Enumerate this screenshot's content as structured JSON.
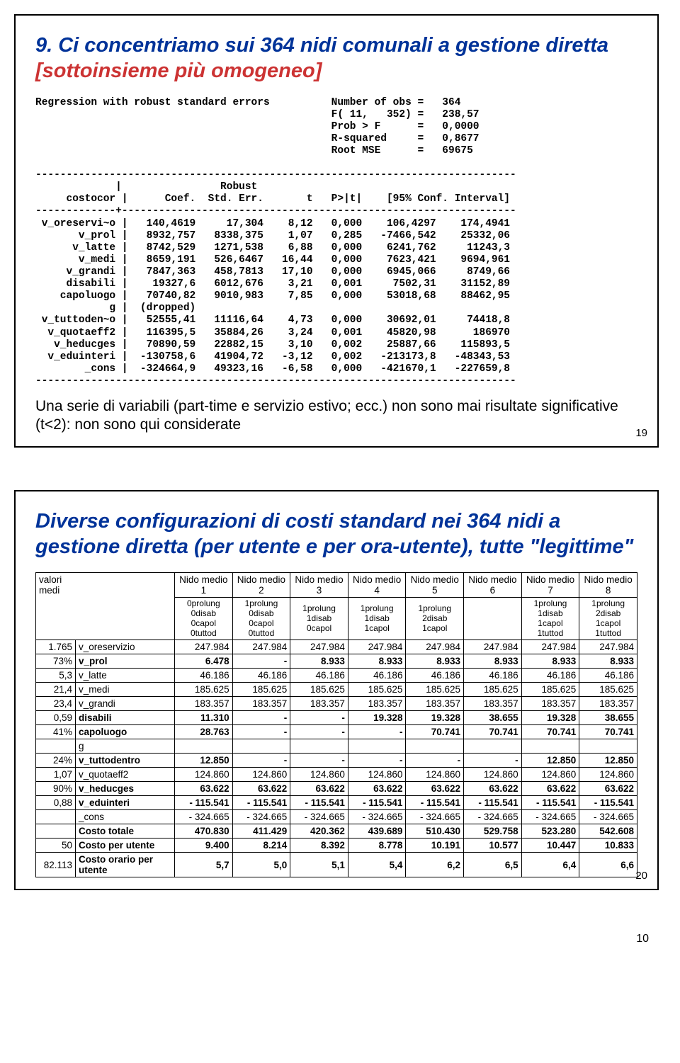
{
  "slide19": {
    "title_prefix": "9. Ci concentriamo sui 364 nidi comunali a gestione diretta ",
    "title_red": "[sottoinsieme più omogeneo]",
    "header": {
      "line": "Regression with robust standard errors",
      "nobs_label": "Number of obs =",
      "nobs": "364",
      "f_label": "F( 11,   352) =",
      "f": "238,57",
      "prob_label": "Prob > F      =",
      "prob": "0,0000",
      "r2_label": "R-squared     =",
      "r2": "0,8677",
      "rmse_label": "Root MSE      =",
      "rmse": "69675"
    },
    "cols": [
      "costocor",
      "Coef.",
      "Std. Err.",
      "t",
      "P>|t|",
      "[95% Conf. Interval]"
    ],
    "robust_label": "Robust",
    "rows": [
      [
        "v_oreservi~o",
        "140,4619",
        "17,304",
        "8,12",
        "0,000",
        "106,4297",
        "174,4941"
      ],
      [
        "v_prol",
        "8932,757",
        "8338,375",
        "1,07",
        "0,285",
        "-7466,542",
        "25332,06"
      ],
      [
        "v_latte",
        "8742,529",
        "1271,538",
        "6,88",
        "0,000",
        "6241,762",
        "11243,3"
      ],
      [
        "v_medi",
        "8659,191",
        "526,6467",
        "16,44",
        "0,000",
        "7623,421",
        "9694,961"
      ],
      [
        "v_grandi",
        "7847,363",
        "458,7813",
        "17,10",
        "0,000",
        "6945,066",
        "8749,66"
      ],
      [
        "disabili",
        "19327,6",
        "6012,676",
        "3,21",
        "0,001",
        "7502,31",
        "31152,89"
      ],
      [
        "capoluogo",
        "70740,82",
        "9010,983",
        "7,85",
        "0,000",
        "53018,68",
        "88462,95"
      ],
      [
        "g",
        "(dropped)",
        "",
        "",
        "",
        "",
        ""
      ],
      [
        "v_tuttoden~o",
        "52555,41",
        "11116,64",
        "4,73",
        "0,000",
        "30692,01",
        "74418,8"
      ],
      [
        "v_quotaeff2",
        "116395,5",
        "35884,26",
        "3,24",
        "0,001",
        "45820,98",
        "186970"
      ],
      [
        "v_heducges",
        "70890,59",
        "22882,15",
        "3,10",
        "0,002",
        "25887,66",
        "115893,5"
      ],
      [
        "v_eduinteri",
        "-130758,6",
        "41904,72",
        "-3,12",
        "0,002",
        "-213173,8",
        "-48343,53"
      ],
      [
        "_cons",
        "-324664,9",
        "49323,16",
        "-6,58",
        "0,000",
        "-421670,1",
        "-227659,8"
      ]
    ],
    "caption": "Una serie di variabili (part-time e servizio estivo; ecc.) non sono mai risultate significative (t<2): non sono qui considerate",
    "slidenum": "19"
  },
  "slide20": {
    "title": "Diverse configurazioni di costi standard nei 364 nidi a gestione diretta (per utente e per ora-utente), tutte \"legittime\"",
    "topleft": "valori\nmedi",
    "ncols": [
      "Nido medio 1",
      "Nido medio 2",
      "Nido medio 3",
      "Nido medio 4",
      "Nido medio 5",
      "Nido medio 6",
      "Nido medio 7",
      "Nido medio 8"
    ],
    "confs": [
      "0prolung\n0disab\n0capol\n0tuttod",
      "1prolung\n0disab\n0capol\n0tuttod",
      "1prolung\n1disab\n0capol",
      "1prolung\n1disab\n1capol",
      "1prolung\n2disab\n1capol",
      "",
      "1prolung\n1disab\n1capol\n1tuttod",
      "1prolung\n2disab\n1capol\n1tuttod"
    ],
    "rows": [
      {
        "mean": "1.765",
        "lab": "v_oreservizio",
        "bold": false,
        "v": [
          "247.984",
          "247.984",
          "247.984",
          "247.984",
          "247.984",
          "247.984",
          "247.984",
          "247.984"
        ]
      },
      {
        "mean": "73%",
        "lab": "v_prol",
        "bold": true,
        "v": [
          "6.478",
          "-",
          "8.933",
          "8.933",
          "8.933",
          "8.933",
          "8.933",
          "8.933"
        ]
      },
      {
        "mean": "5,3",
        "lab": "v_latte",
        "bold": false,
        "v": [
          "46.186",
          "46.186",
          "46.186",
          "46.186",
          "46.186",
          "46.186",
          "46.186",
          "46.186"
        ]
      },
      {
        "mean": "21,4",
        "lab": "v_medi",
        "bold": false,
        "v": [
          "185.625",
          "185.625",
          "185.625",
          "185.625",
          "185.625",
          "185.625",
          "185.625",
          "185.625"
        ]
      },
      {
        "mean": "23,4",
        "lab": "v_grandi",
        "bold": false,
        "v": [
          "183.357",
          "183.357",
          "183.357",
          "183.357",
          "183.357",
          "183.357",
          "183.357",
          "183.357"
        ]
      },
      {
        "mean": "0,59",
        "lab": "disabili",
        "bold": true,
        "v": [
          "11.310",
          "-",
          "-",
          "19.328",
          "19.328",
          "38.655",
          "19.328",
          "38.655"
        ]
      },
      {
        "mean": "41%",
        "lab": "capoluogo",
        "bold": true,
        "v": [
          "28.763",
          "-",
          "-",
          "-",
          "70.741",
          "70.741",
          "70.741",
          "70.741"
        ]
      },
      {
        "mean": "",
        "lab": "g",
        "bold": false,
        "v": [
          "",
          "",
          "",
          "",
          "",
          "",
          "",
          ""
        ]
      },
      {
        "mean": "24%",
        "lab": "v_tuttodentro",
        "bold": true,
        "v": [
          "12.850",
          "-",
          "-",
          "-",
          "-",
          "-",
          "12.850",
          "12.850"
        ]
      },
      {
        "mean": "1,07",
        "lab": "v_quotaeff2",
        "bold": false,
        "v": [
          "124.860",
          "124.860",
          "124.860",
          "124.860",
          "124.860",
          "124.860",
          "124.860",
          "124.860"
        ]
      },
      {
        "mean": "90%",
        "lab": "v_heducges",
        "bold": true,
        "v": [
          "63.622",
          "63.622",
          "63.622",
          "63.622",
          "63.622",
          "63.622",
          "63.622",
          "63.622"
        ]
      },
      {
        "mean": "0,88",
        "lab": "v_eduinteri",
        "bold": true,
        "v": [
          "- 115.541",
          "- 115.541",
          "- 115.541",
          "- 115.541",
          "- 115.541",
          "- 115.541",
          "- 115.541",
          "- 115.541"
        ]
      },
      {
        "mean": "",
        "lab": "_cons",
        "bold": false,
        "v": [
          "- 324.665",
          "- 324.665",
          "- 324.665",
          "- 324.665",
          "- 324.665",
          "- 324.665",
          "- 324.665",
          "- 324.665"
        ]
      },
      {
        "mean": "",
        "lab": "Costo totale",
        "bold": true,
        "v": [
          "470.830",
          "411.429",
          "420.362",
          "439.689",
          "510.430",
          "529.758",
          "523.280",
          "542.608"
        ]
      },
      {
        "mean": "50",
        "lab": "Costo per utente",
        "bold": true,
        "v": [
          "9.400",
          "8.214",
          "8.392",
          "8.778",
          "10.191",
          "10.577",
          "10.447",
          "10.833"
        ]
      },
      {
        "mean": "82.113",
        "lab": "Costo orario per utente",
        "bold": true,
        "v": [
          "5,7",
          "5,0",
          "5,1",
          "5,4",
          "6,2",
          "6,5",
          "6,4",
          "6,6"
        ]
      }
    ],
    "slidenum": "20"
  },
  "pagenum": "10"
}
